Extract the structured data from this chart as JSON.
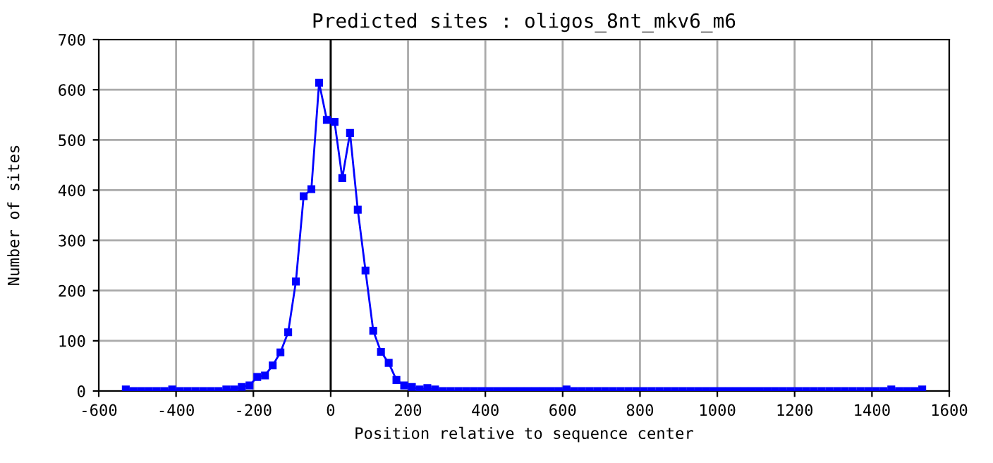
{
  "chart_data": {
    "type": "line",
    "title": "Predicted sites : oligos_8nt_mkv6_m6",
    "xlabel": "Position relative to sequence center",
    "ylabel": "Number of sites",
    "x": [
      -530,
      -510,
      -490,
      -470,
      -450,
      -430,
      -410,
      -390,
      -370,
      -350,
      -330,
      -310,
      -290,
      -270,
      -250,
      -230,
      -210,
      -190,
      -170,
      -150,
      -130,
      -110,
      -90,
      -70,
      -50,
      -30,
      -10,
      10,
      30,
      50,
      70,
      90,
      110,
      130,
      150,
      170,
      190,
      210,
      230,
      250,
      270,
      290,
      310,
      330,
      350,
      370,
      390,
      410,
      430,
      450,
      470,
      490,
      510,
      530,
      550,
      570,
      590,
      610,
      630,
      650,
      670,
      690,
      710,
      730,
      750,
      770,
      790,
      810,
      830,
      850,
      870,
      890,
      910,
      930,
      950,
      970,
      990,
      1010,
      1030,
      1050,
      1070,
      1090,
      1110,
      1130,
      1150,
      1170,
      1190,
      1210,
      1230,
      1250,
      1270,
      1290,
      1310,
      1330,
      1350,
      1370,
      1390,
      1410,
      1430,
      1450,
      1470,
      1490,
      1510,
      1530
    ],
    "series": [
      {
        "color": "#0000ff",
        "values": [
          3,
          0,
          0,
          0,
          0,
          0,
          3,
          0,
          0,
          0,
          0,
          0,
          0,
          3,
          3,
          8,
          11,
          28,
          31,
          51,
          77,
          117,
          218,
          388,
          402,
          614,
          540,
          536,
          424,
          514,
          361,
          240,
          120,
          78,
          56,
          22,
          11,
          8,
          3,
          6,
          3,
          0,
          0,
          0,
          0,
          0,
          0,
          0,
          0,
          0,
          0,
          0,
          0,
          0,
          0,
          0,
          0,
          3,
          0,
          0,
          0,
          0,
          0,
          0,
          0,
          0,
          0,
          0,
          0,
          0,
          0,
          0,
          0,
          0,
          0,
          0,
          0,
          0,
          0,
          0,
          0,
          0,
          0,
          0,
          0,
          0,
          0,
          0,
          0,
          0,
          0,
          0,
          0,
          0,
          0,
          0,
          0,
          0,
          0,
          3,
          0,
          0,
          0,
          3
        ]
      }
    ],
    "xlim": [
      -600,
      1600
    ],
    "xticks": [
      -600,
      -400,
      -200,
      0,
      200,
      400,
      600,
      800,
      1000,
      1200,
      1400,
      1600
    ],
    "ylim": [
      0,
      700
    ],
    "yticks": [
      0,
      100,
      200,
      300,
      400,
      500,
      600,
      700
    ],
    "ref_lines": [
      {
        "axis": "x",
        "value": 0,
        "color": "#000000"
      }
    ],
    "grid": true,
    "marker": "square",
    "line_style": "solid",
    "legend": false
  }
}
